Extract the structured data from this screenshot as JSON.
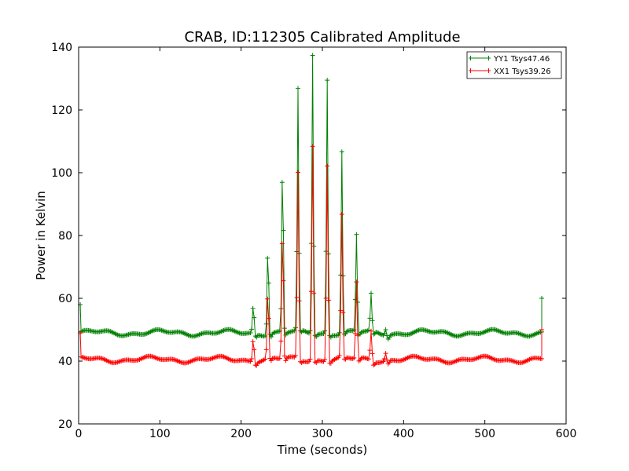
{
  "chart_data": {
    "type": "line",
    "title": "CRAB, ID:112305 Calibrated Amplitude",
    "xlabel": "Time (seconds)",
    "ylabel": "Power in Kelvin",
    "xlim": [
      0,
      600
    ],
    "ylim": [
      20,
      140
    ],
    "xticks": [
      0,
      100,
      200,
      300,
      400,
      500,
      600
    ],
    "yticks": [
      20,
      40,
      60,
      80,
      100,
      120,
      140
    ],
    "grid": false,
    "legend_position": "top-right",
    "series": [
      {
        "name": "YY1 Tsys47.46",
        "color": "#008000",
        "marker": "+",
        "baseline": 49,
        "start": [
          2,
          58
        ],
        "end": [
          570,
          60
        ],
        "x_range": [
          3,
          570
        ],
        "pulses": [
          {
            "x": 215,
            "peak": 58
          },
          {
            "x": 233,
            "peak": 77
          },
          {
            "x": 251,
            "peak": 103
          },
          {
            "x": 270,
            "peak": 126
          },
          {
            "x": 288,
            "peak": 138
          },
          {
            "x": 306,
            "peak": 130
          },
          {
            "x": 324,
            "peak": 107
          },
          {
            "x": 342,
            "peak": 80
          },
          {
            "x": 360,
            "peak": 61
          },
          {
            "x": 378,
            "peak": 51
          }
        ]
      },
      {
        "name": "XX1 Tsys39.26",
        "color": "#ff0000",
        "marker": "+",
        "baseline": 40.5,
        "start": [
          2,
          49
        ],
        "end": [
          570,
          50
        ],
        "x_range": [
          3,
          570
        ],
        "pulses": [
          {
            "x": 215,
            "peak": 48
          },
          {
            "x": 233,
            "peak": 62
          },
          {
            "x": 251,
            "peak": 82
          },
          {
            "x": 270,
            "peak": 100
          },
          {
            "x": 288,
            "peak": 109
          },
          {
            "x": 306,
            "peak": 103
          },
          {
            "x": 324,
            "peak": 86
          },
          {
            "x": 342,
            "peak": 65
          },
          {
            "x": 360,
            "peak": 50
          },
          {
            "x": 378,
            "peak": 43
          }
        ]
      }
    ]
  }
}
